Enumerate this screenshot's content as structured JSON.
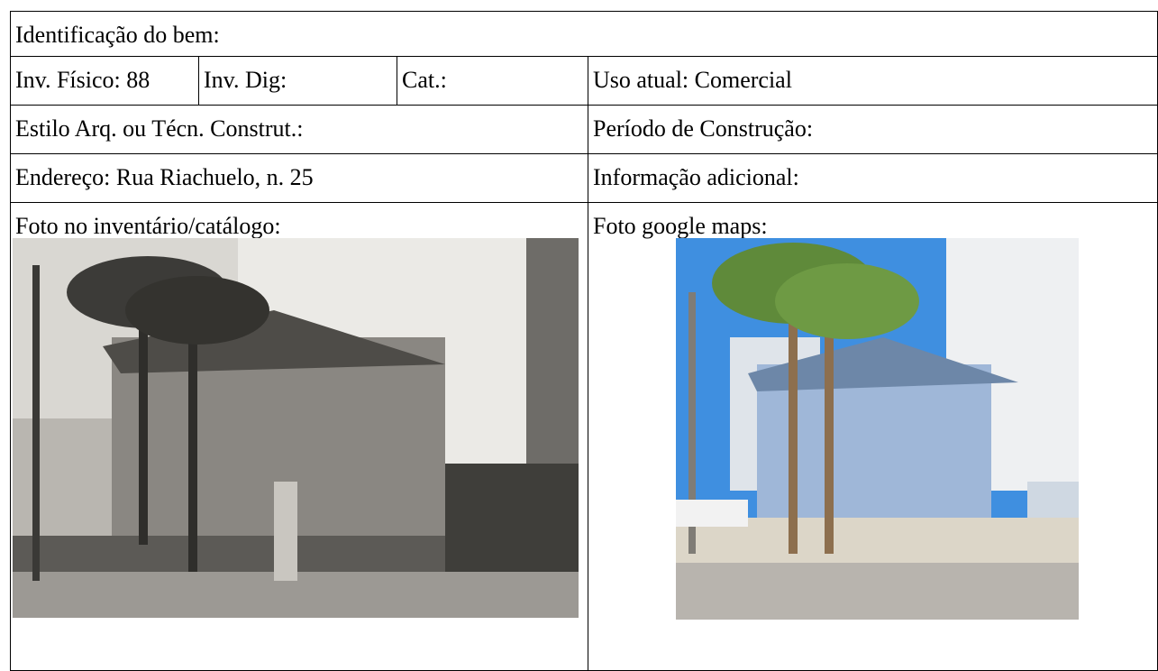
{
  "table": {
    "rows": [
      [
        "Identificação do bem:"
      ],
      [
        "Inv. Físico: 88",
        "Inv. Dig:",
        "Cat.:",
        "Uso atual: Comercial"
      ],
      [
        "Estilo Arq. ou Técn. Construt.:",
        "Período de Construção:"
      ],
      [
        "Endereço: Rua Riachuelo, n. 25",
        "Informação adicional:"
      ],
      [
        "Foto no inventário/catálogo:",
        "Foto google maps:"
      ]
    ]
  }
}
